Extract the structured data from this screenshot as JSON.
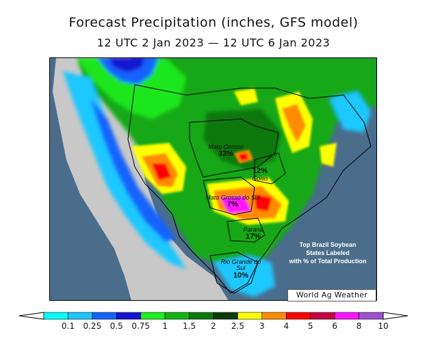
{
  "title": "Forecast Precipitation (inches, GFS model)",
  "subtitle": "12 UTC 2 Jan 2023 — 12 UTC 6 Jan 2023",
  "colors": {
    "ocean": "#4b6d8c",
    "non_brazil_land": "#c8c8c8",
    "border": "#000000"
  },
  "states": [
    {
      "name": "Mato Grosso",
      "pct": "33%"
    },
    {
      "name": "Goias",
      "pct": "12%"
    },
    {
      "name": "Mato Grosso do Sul",
      "pct": "7%"
    },
    {
      "name": "Parana",
      "pct": "17%"
    },
    {
      "name": "Rio Grande do Sul",
      "pct": "10%"
    }
  ],
  "note": [
    "Top Brazil Soybean",
    "States Labeled",
    "with % of Total Production"
  ],
  "credit": "World Ag Weather",
  "legend": {
    "ticks": [
      "0.1",
      "0.25",
      "0.5",
      "0.75",
      "1",
      "1.5",
      "2",
      "2.5",
      "3",
      "4",
      "5",
      "6",
      "8",
      "10"
    ],
    "colors": [
      "#00ffff",
      "#1ec8ff",
      "#1464ff",
      "#1414d2",
      "#1ef01e",
      "#14b414",
      "#0a780a",
      "#0a3c0a",
      "#ffff00",
      "#ff8c00",
      "#ff0000",
      "#c80046",
      "#ff14ff",
      "#a050d2"
    ]
  }
}
